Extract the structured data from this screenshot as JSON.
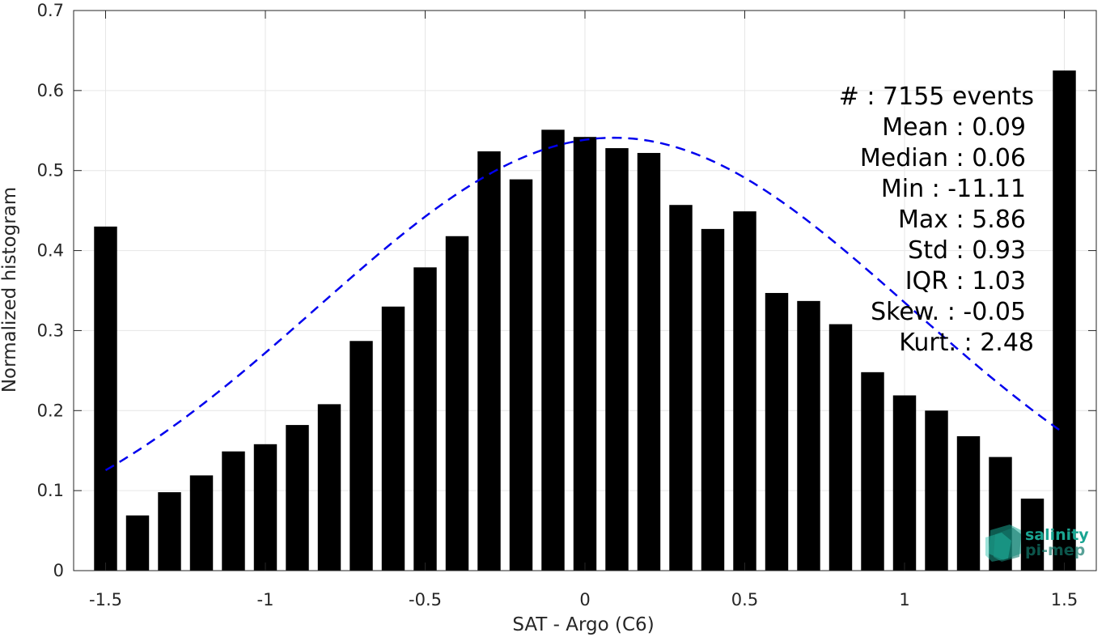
{
  "chart_data": {
    "type": "bar",
    "xlabel": "SAT - Argo (C6)",
    "ylabel": "Normalized histogram",
    "xlim": [
      -1.6,
      1.6
    ],
    "ylim": [
      0,
      0.7
    ],
    "grid": true,
    "x": [
      -1.5,
      -1.4,
      -1.3,
      -1.2,
      -1.1,
      -1.0,
      -0.9,
      -0.8,
      -0.7,
      -0.6,
      -0.5,
      -0.4,
      -0.3,
      -0.2,
      -0.1,
      0.0,
      0.1,
      0.2,
      0.3,
      0.4,
      0.5,
      0.6,
      0.7,
      0.8,
      0.9,
      1.0,
      1.1,
      1.2,
      1.3,
      1.4,
      1.5
    ],
    "values": [
      0.43,
      0.069,
      0.098,
      0.119,
      0.149,
      0.158,
      0.182,
      0.208,
      0.287,
      0.33,
      0.379,
      0.418,
      0.524,
      0.489,
      0.551,
      0.542,
      0.528,
      0.522,
      0.457,
      0.427,
      0.449,
      0.347,
      0.337,
      0.308,
      0.248,
      0.219,
      0.2,
      0.168,
      0.142,
      0.09,
      0.625
    ],
    "bar_color": "#000000",
    "fit_curve": {
      "style": "dashed",
      "color": "#0000ee",
      "mean": 0.09,
      "std": 0.93,
      "peak": 0.541,
      "x_range": [
        -1.5,
        1.5
      ]
    },
    "xticks": [
      {
        "value": -1.5,
        "label": "-1.5"
      },
      {
        "value": -1.0,
        "label": "-1"
      },
      {
        "value": -0.5,
        "label": "-0.5"
      },
      {
        "value": 0.0,
        "label": "0"
      },
      {
        "value": 0.5,
        "label": "0.5"
      },
      {
        "value": 1.0,
        "label": "1"
      },
      {
        "value": 1.5,
        "label": "1.5"
      }
    ],
    "yticks": [
      {
        "value": 0.0,
        "label": "0"
      },
      {
        "value": 0.1,
        "label": "0.1"
      },
      {
        "value": 0.2,
        "label": "0.2"
      },
      {
        "value": 0.3,
        "label": "0.3"
      },
      {
        "value": 0.4,
        "label": "0.4"
      },
      {
        "value": 0.5,
        "label": "0.5"
      },
      {
        "value": 0.6,
        "label": "0.6"
      },
      {
        "value": 0.7,
        "label": "0.7"
      }
    ],
    "annotations": [
      "#  : 7155 events",
      "Mean : 0.09",
      "Median : 0.06",
      "Min : -11.11",
      "Max : 5.86",
      "Std : 0.93",
      "IQR : 1.03",
      "Skew. : -0.05",
      "Kurt. : 2.48"
    ]
  },
  "logo": {
    "line1": "salinity",
    "line2": "pi-mep",
    "color": "#1aa592",
    "icon": "salinity-pimep-logo-icon"
  }
}
